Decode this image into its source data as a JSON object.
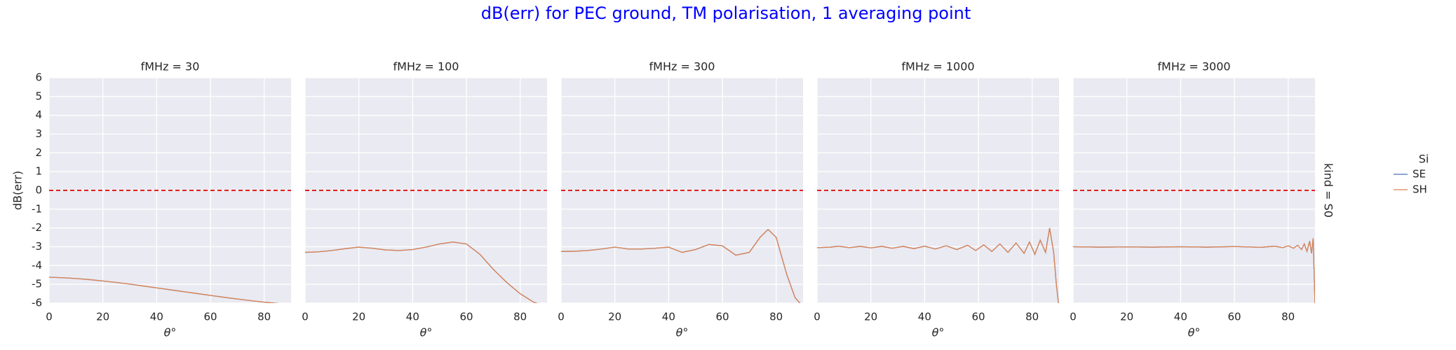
{
  "title": "dB(err) for PEC ground, TM polarisation, 1 averaging point",
  "legend_title": "Si",
  "row_label": "kind = S0",
  "chart_data": [
    {
      "type": "line",
      "title": "fMHz = 30",
      "xlabel": "θ°",
      "ylabel": "dB(err)",
      "x": [
        0,
        5,
        10,
        15,
        20,
        25,
        30,
        35,
        40,
        45,
        50,
        55,
        60,
        65,
        70,
        75,
        80,
        85,
        90
      ],
      "series": [
        {
          "name": "SE",
          "color": "#4c72b0",
          "values": [
            -4.62,
            -4.65,
            -4.69,
            -4.75,
            -4.82,
            -4.9,
            -4.99,
            -5.09,
            -5.19,
            -5.29,
            -5.39,
            -5.49,
            -5.59,
            -5.69,
            -5.78,
            -5.87,
            -5.95,
            -6.02,
            -6.08
          ]
        },
        {
          "name": "SH",
          "color": "#dd8452",
          "values": [
            -4.62,
            -4.65,
            -4.69,
            -4.75,
            -4.82,
            -4.9,
            -4.99,
            -5.09,
            -5.19,
            -5.29,
            -5.39,
            -5.49,
            -5.59,
            -5.69,
            -5.78,
            -5.87,
            -5.95,
            -6.02,
            -6.08
          ]
        }
      ],
      "hline": 0,
      "hline_color": "#e00000",
      "xlim": [
        0,
        90
      ],
      "xticks": [
        0,
        20,
        40,
        60,
        80
      ],
      "ylim": [
        -6,
        6
      ],
      "yticks": [
        -6,
        -5,
        -4,
        -3,
        -2,
        -1,
        0,
        1,
        2,
        3,
        4,
        5,
        6
      ],
      "grid": true
    },
    {
      "type": "line",
      "title": "fMHz = 100",
      "xlabel": "θ°",
      "x": [
        0,
        5,
        10,
        15,
        20,
        25,
        30,
        35,
        40,
        45,
        50,
        55,
        60,
        65,
        70,
        75,
        80,
        85,
        90
      ],
      "series": [
        {
          "name": "SE",
          "color": "#4c72b0",
          "values": [
            -3.3,
            -3.27,
            -3.2,
            -3.1,
            -3.02,
            -3.08,
            -3.17,
            -3.2,
            -3.15,
            -3.02,
            -2.85,
            -2.75,
            -2.85,
            -3.4,
            -4.2,
            -4.9,
            -5.5,
            -5.95,
            -6.2
          ]
        },
        {
          "name": "SH",
          "color": "#dd8452",
          "values": [
            -3.3,
            -3.27,
            -3.2,
            -3.1,
            -3.02,
            -3.08,
            -3.17,
            -3.2,
            -3.15,
            -3.02,
            -2.85,
            -2.75,
            -2.85,
            -3.4,
            -4.2,
            -4.9,
            -5.5,
            -5.95,
            -6.2
          ]
        }
      ],
      "hline": 0,
      "hline_color": "#e00000",
      "xlim": [
        0,
        90
      ],
      "xticks": [
        0,
        20,
        40,
        60,
        80
      ],
      "ylim": [
        -6,
        6
      ],
      "yticks": [
        -6,
        -5,
        -4,
        -3,
        -2,
        -1,
        0,
        1,
        2,
        3,
        4,
        5,
        6
      ],
      "grid": true
    },
    {
      "type": "line",
      "title": "fMHz = 300",
      "xlabel": "θ°",
      "x": [
        0,
        5,
        10,
        15,
        20,
        25,
        30,
        35,
        40,
        45,
        50,
        55,
        60,
        65,
        70,
        74,
        77,
        80,
        84,
        87,
        90
      ],
      "series": [
        {
          "name": "SE",
          "color": "#4c72b0",
          "values": [
            -3.25,
            -3.24,
            -3.2,
            -3.12,
            -3.02,
            -3.12,
            -3.12,
            -3.08,
            -3.02,
            -3.3,
            -3.15,
            -2.88,
            -2.95,
            -3.45,
            -3.3,
            -2.5,
            -2.08,
            -2.5,
            -4.5,
            -5.7,
            -6.2
          ]
        },
        {
          "name": "SH",
          "color": "#dd8452",
          "values": [
            -3.25,
            -3.24,
            -3.2,
            -3.12,
            -3.02,
            -3.12,
            -3.12,
            -3.08,
            -3.02,
            -3.3,
            -3.15,
            -2.88,
            -2.95,
            -3.45,
            -3.3,
            -2.5,
            -2.08,
            -2.5,
            -4.5,
            -5.7,
            -6.2
          ]
        }
      ],
      "hline": 0,
      "hline_color": "#e00000",
      "xlim": [
        0,
        90
      ],
      "xticks": [
        0,
        20,
        40,
        60,
        80
      ],
      "ylim": [
        -6,
        6
      ],
      "yticks": [
        -6,
        -5,
        -4,
        -3,
        -2,
        -1,
        0,
        1,
        2,
        3,
        4,
        5,
        6
      ],
      "grid": true
    },
    {
      "type": "line",
      "title": "fMHz = 1000",
      "xlabel": "θ°",
      "x": [
        0,
        5,
        8,
        12,
        16,
        20,
        24,
        28,
        32,
        36,
        40,
        44,
        48,
        52,
        56,
        59,
        62,
        65,
        68,
        71,
        74,
        77,
        79,
        81,
        83,
        85,
        86.5,
        88,
        89,
        90
      ],
      "series": [
        {
          "name": "SE",
          "color": "#4c72b0",
          "values": [
            -3.05,
            -3.02,
            -2.97,
            -3.05,
            -2.98,
            -3.06,
            -2.98,
            -3.08,
            -2.98,
            -3.1,
            -2.97,
            -3.12,
            -2.95,
            -3.15,
            -2.92,
            -3.2,
            -2.9,
            -3.25,
            -2.85,
            -3.3,
            -2.8,
            -3.35,
            -2.75,
            -3.4,
            -2.65,
            -3.3,
            -2.0,
            -3.3,
            -5.0,
            -6.3
          ]
        },
        {
          "name": "SH",
          "color": "#dd8452",
          "values": [
            -3.05,
            -3.02,
            -2.97,
            -3.05,
            -2.98,
            -3.06,
            -2.98,
            -3.08,
            -2.98,
            -3.1,
            -2.97,
            -3.12,
            -2.95,
            -3.15,
            -2.92,
            -3.2,
            -2.9,
            -3.25,
            -2.85,
            -3.3,
            -2.8,
            -3.35,
            -2.75,
            -3.4,
            -2.65,
            -3.3,
            -2.0,
            -3.3,
            -5.0,
            -6.3
          ]
        }
      ],
      "hline": 0,
      "hline_color": "#e00000",
      "xlim": [
        0,
        90
      ],
      "xticks": [
        0,
        20,
        40,
        60,
        80
      ],
      "ylim": [
        -6,
        6
      ],
      "yticks": [
        -6,
        -5,
        -4,
        -3,
        -2,
        -1,
        0,
        1,
        2,
        3,
        4,
        5,
        6
      ],
      "grid": true
    },
    {
      "type": "line",
      "title": "fMHz = 3000",
      "xlabel": "θ°",
      "x": [
        0,
        10,
        20,
        30,
        40,
        50,
        60,
        70,
        75,
        78,
        80,
        82,
        83.5,
        85,
        86,
        87,
        88,
        88.7,
        89.3,
        90
      ],
      "series": [
        {
          "name": "SE",
          "color": "#4c72b0",
          "values": [
            -3.0,
            -3.02,
            -3.01,
            -3.02,
            -3.0,
            -3.02,
            -2.99,
            -3.03,
            -2.97,
            -3.05,
            -2.95,
            -3.08,
            -2.92,
            -3.15,
            -2.85,
            -3.25,
            -2.7,
            -3.35,
            -2.55,
            -6.1
          ]
        },
        {
          "name": "SH",
          "color": "#dd8452",
          "values": [
            -3.0,
            -3.02,
            -3.01,
            -3.02,
            -3.0,
            -3.02,
            -2.99,
            -3.03,
            -2.97,
            -3.05,
            -2.95,
            -3.08,
            -2.92,
            -3.15,
            -2.85,
            -3.25,
            -2.7,
            -3.35,
            -2.55,
            -6.1
          ]
        }
      ],
      "hline": 0,
      "hline_color": "#e00000",
      "xlim": [
        0,
        90
      ],
      "xticks": [
        0,
        20,
        40,
        60,
        80
      ],
      "ylim": [
        -6,
        6
      ],
      "yticks": [
        -6,
        -5,
        -4,
        -3,
        -2,
        -1,
        0,
        1,
        2,
        3,
        4,
        5,
        6
      ],
      "grid": true
    }
  ]
}
